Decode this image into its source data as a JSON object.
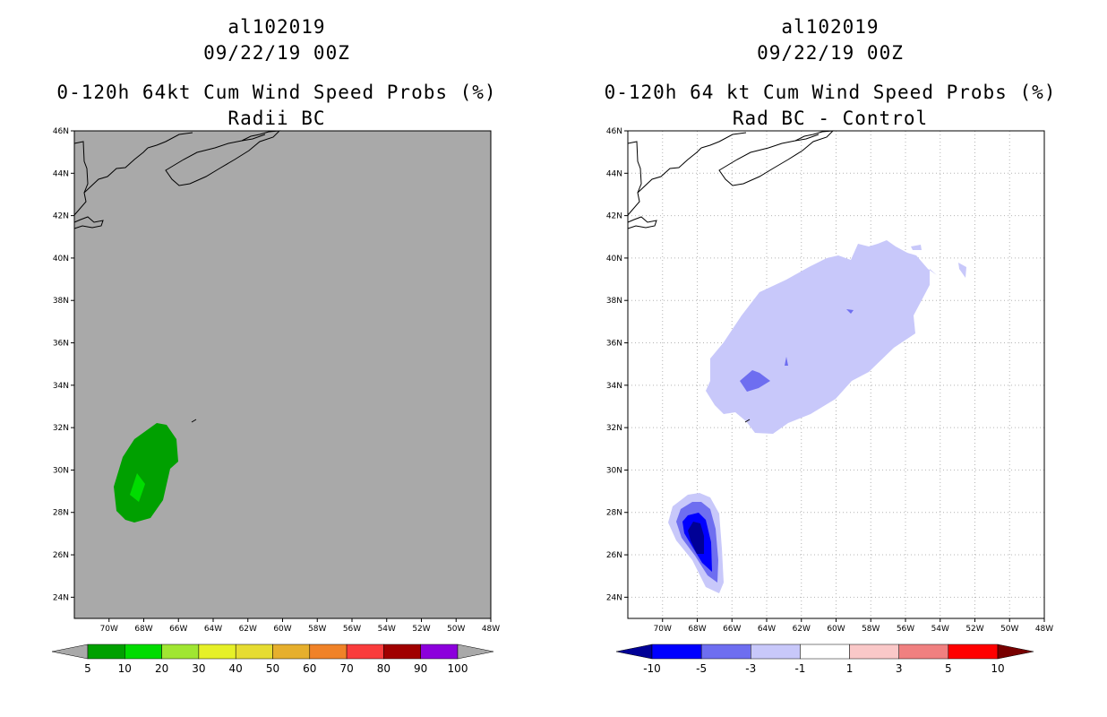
{
  "panels": [
    {
      "id": "radii-bc",
      "storm_id": "al102019",
      "datetime": "09/22/19 00Z",
      "product": "0-120h 64kt Cum Wind Speed Probs (%)",
      "subtitle": "Radii BC",
      "background_color": "#a9a9a9",
      "gridlines": false,
      "colorbar": {
        "labels": [
          "5",
          "10",
          "20",
          "30",
          "40",
          "50",
          "60",
          "70",
          "80",
          "90",
          "100"
        ],
        "colors": [
          "#00a000",
          "#00dc00",
          "#a0e632",
          "#e6f028",
          "#e6dc32",
          "#e6af2d",
          "#f08228",
          "#fa3c3c",
          "#a00000",
          "#8c00dc"
        ],
        "end_low": "#a9a9a9",
        "end_high": "#a9a9a9"
      }
    },
    {
      "id": "rad-bc-control",
      "storm_id": "al102019",
      "datetime": "09/22/19 00Z",
      "product": "0-120h 64 kt Cum Wind Speed Probs (%)",
      "subtitle": "Rad BC - Control",
      "background_color": "#ffffff",
      "gridlines": true,
      "colorbar": {
        "labels": [
          "-10",
          "-5",
          "-3",
          "-1",
          "1",
          "3",
          "5",
          "10"
        ],
        "colors": [
          "#0000ff",
          "#6e6ef0",
          "#c8c8fa",
          "#ffffff",
          "#fac8c8",
          "#f08080",
          "#ff0000"
        ],
        "end_low": "#000096",
        "end_high": "#780000"
      }
    }
  ],
  "map": {
    "lat_labels": [
      "24N",
      "26N",
      "28N",
      "30N",
      "32N",
      "34N",
      "36N",
      "38N",
      "40N",
      "42N",
      "44N",
      "46N"
    ],
    "lon_labels": [
      "70W",
      "68W",
      "66W",
      "64W",
      "62W",
      "60W",
      "58W",
      "56W",
      "54W",
      "52W",
      "50W",
      "48W"
    ]
  }
}
